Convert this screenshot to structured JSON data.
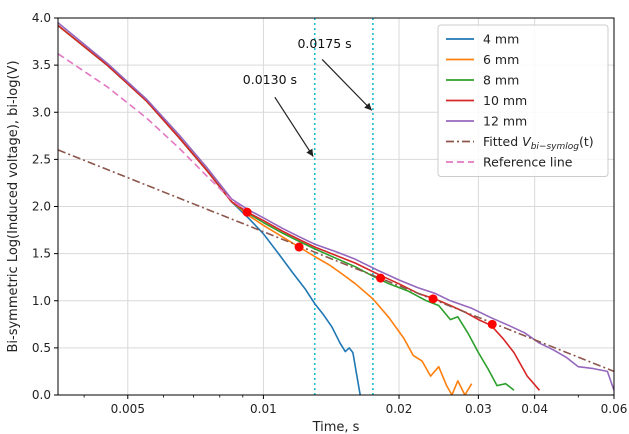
{
  "chart_data": {
    "type": "line",
    "xlabel": "Time, s",
    "ylabel": "Bi-symmetric Log(Induced voltage), bi-log(V)",
    "xscale": "log",
    "xlim": [
      0.0035,
      0.06
    ],
    "ylim": [
      0.0,
      4.0
    ],
    "grid": true,
    "legend_position": "top-right",
    "xticks": [
      {
        "value": 0.005,
        "label": "0.005"
      },
      {
        "value": 0.01,
        "label": "0.01"
      },
      {
        "value": 0.02,
        "label": "0.02"
      },
      {
        "value": 0.03,
        "label": "0.03"
      },
      {
        "value": 0.04,
        "label": "0.04"
      },
      {
        "value": 0.06,
        "label": "0.06"
      }
    ],
    "yticks": [
      "0.0",
      "0.5",
      "1.0",
      "1.5",
      "2.0",
      "2.5",
      "3.0",
      "3.5",
      "4.0"
    ],
    "series": [
      {
        "name": "4 mm",
        "color": "#1f77b4",
        "style": "solid",
        "x": [
          0.0035,
          0.0045,
          0.0055,
          0.0065,
          0.0075,
          0.0085,
          0.0093,
          0.01,
          0.0108,
          0.0116,
          0.0124,
          0.013,
          0.0136,
          0.0142,
          0.0148,
          0.0152,
          0.0155,
          0.0158,
          0.0161,
          0.0164
        ],
        "y": [
          3.92,
          3.5,
          3.12,
          2.73,
          2.38,
          2.05,
          1.87,
          1.71,
          1.5,
          1.3,
          1.12,
          0.97,
          0.85,
          0.72,
          0.55,
          0.46,
          0.5,
          0.45,
          0.22,
          0.0
        ]
      },
      {
        "name": "6 mm",
        "color": "#ff7f0e",
        "style": "solid",
        "x": [
          0.0035,
          0.0045,
          0.0055,
          0.0065,
          0.0075,
          0.0085,
          0.0093,
          0.01,
          0.011,
          0.012,
          0.013,
          0.014,
          0.015,
          0.016,
          0.0175,
          0.019,
          0.0205,
          0.0215,
          0.0225,
          0.0235,
          0.0245,
          0.0255,
          0.0262,
          0.027,
          0.028,
          0.029
        ],
        "y": [
          3.92,
          3.5,
          3.12,
          2.73,
          2.38,
          2.05,
          1.9,
          1.8,
          1.68,
          1.57,
          1.47,
          1.38,
          1.28,
          1.18,
          1.02,
          0.82,
          0.6,
          0.42,
          0.36,
          0.2,
          0.3,
          0.1,
          0.0,
          0.15,
          0.0,
          0.12
        ]
      },
      {
        "name": "8 mm",
        "color": "#2ca02c",
        "style": "solid",
        "x": [
          0.0035,
          0.0045,
          0.0055,
          0.0065,
          0.0075,
          0.0085,
          0.0093,
          0.01,
          0.011,
          0.012,
          0.013,
          0.0145,
          0.016,
          0.0175,
          0.019,
          0.021,
          0.023,
          0.0245,
          0.026,
          0.027,
          0.0285,
          0.03,
          0.0315,
          0.033,
          0.0345,
          0.036
        ],
        "y": [
          3.92,
          3.5,
          3.12,
          2.73,
          2.38,
          2.05,
          1.92,
          1.83,
          1.72,
          1.63,
          1.55,
          1.45,
          1.36,
          1.26,
          1.18,
          1.1,
          1.0,
          0.95,
          0.8,
          0.83,
          0.65,
          0.45,
          0.28,
          0.1,
          0.12,
          0.05
        ]
      },
      {
        "name": "10 mm",
        "color": "#d62728",
        "style": "solid",
        "x": [
          0.0035,
          0.0045,
          0.0055,
          0.0065,
          0.0075,
          0.0085,
          0.0093,
          0.01,
          0.011,
          0.012,
          0.013,
          0.0145,
          0.016,
          0.018,
          0.02,
          0.022,
          0.024,
          0.026,
          0.028,
          0.03,
          0.032,
          0.034,
          0.036,
          0.0385,
          0.041
        ],
        "y": [
          3.92,
          3.5,
          3.12,
          2.73,
          2.38,
          2.05,
          1.93,
          1.85,
          1.74,
          1.65,
          1.57,
          1.48,
          1.4,
          1.28,
          1.18,
          1.08,
          1.02,
          0.95,
          0.88,
          0.8,
          0.74,
          0.6,
          0.45,
          0.2,
          0.05
        ]
      },
      {
        "name": "12 mm",
        "color": "#9467bd",
        "style": "solid",
        "x": [
          0.0035,
          0.0045,
          0.0055,
          0.0065,
          0.0075,
          0.0085,
          0.0093,
          0.01,
          0.011,
          0.012,
          0.013,
          0.0145,
          0.016,
          0.018,
          0.02,
          0.022,
          0.024,
          0.026,
          0.029,
          0.032,
          0.035,
          0.038,
          0.041,
          0.044,
          0.047,
          0.05,
          0.054,
          0.058,
          0.06
        ],
        "y": [
          3.95,
          3.52,
          3.14,
          2.76,
          2.41,
          2.08,
          1.96,
          1.88,
          1.77,
          1.68,
          1.6,
          1.52,
          1.44,
          1.32,
          1.22,
          1.14,
          1.08,
          1.0,
          0.92,
          0.82,
          0.74,
          0.66,
          0.55,
          0.48,
          0.4,
          0.3,
          0.28,
          0.25,
          0.05
        ]
      },
      {
        "name": "Fitted $V_{bi-symlog}(t)$",
        "label_prefix": "Fitted ",
        "label_main": "V",
        "label_sub": "bi−symlog",
        "label_suffix": "(t)",
        "color": "#8c564b",
        "style": "dashdot",
        "x": [
          0.0035,
          0.06
        ],
        "y": [
          2.6,
          0.25
        ]
      },
      {
        "name": "Reference line",
        "color": "#e377c2",
        "style": "dashed",
        "x": [
          0.0035,
          0.0045,
          0.0055,
          0.0065,
          0.0075,
          0.0085,
          0.0093
        ],
        "y": [
          3.62,
          3.27,
          2.94,
          2.62,
          2.32,
          2.07,
          1.93
        ]
      }
    ],
    "markers": {
      "color": "#ff0000",
      "points": [
        {
          "x": 0.0092,
          "y": 1.94
        },
        {
          "x": 0.012,
          "y": 1.57
        },
        {
          "x": 0.0182,
          "y": 1.24
        },
        {
          "x": 0.0238,
          "y": 1.02
        },
        {
          "x": 0.0322,
          "y": 0.75
        }
      ]
    },
    "vlines": [
      {
        "x": 0.013,
        "color": "#17becf",
        "style": "dotted"
      },
      {
        "x": 0.0175,
        "color": "#17becf",
        "style": "dotted"
      }
    ],
    "annotations": [
      {
        "text": "0.0130 s",
        "text_x": 0.009,
        "text_y": 3.3,
        "arrow_from": [
          0.0106,
          3.16
        ],
        "arrow_to": [
          0.0129,
          2.53
        ]
      },
      {
        "text": "0.0175 s",
        "text_x": 0.0119,
        "text_y": 3.68,
        "arrow_from": [
          0.0135,
          3.56
        ],
        "arrow_to": [
          0.0174,
          3.02
        ]
      }
    ]
  }
}
